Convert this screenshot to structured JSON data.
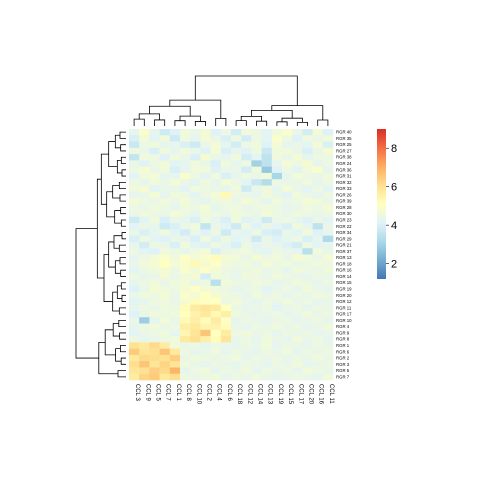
{
  "chart_data": {
    "type": "heatmap",
    "columns": [
      "CCL 3",
      "CCL 9",
      "CCL 5",
      "CCL 7",
      "CCL 1",
      "CCL 8",
      "CCL 10",
      "CCL 2",
      "CCL 4",
      "CCL 6",
      "CCL 18",
      "CCL 12",
      "CCL 14",
      "CCL 13",
      "CCL 19",
      "CCL 15",
      "CCL 17",
      "CCL 20",
      "CCL 16",
      "CCL 11"
    ],
    "rows": [
      "RGR 40",
      "RGR 35",
      "RGR 25",
      "RGR 27",
      "RGR 38",
      "RGR 24",
      "RGR 36",
      "RGR 31",
      "RGR 32",
      "RGR 33",
      "RGR 26",
      "RGR 39",
      "RGR 28",
      "RGR 30",
      "RGR 23",
      "RGR 22",
      "RGR 34",
      "RGR 29",
      "RGR 21",
      "RGR 37",
      "RGR 13",
      "RGR 18",
      "RGR 16",
      "RGR 14",
      "RGR 15",
      "RGR 19",
      "RGR 20",
      "RGR 12",
      "RGR 11",
      "RGR 17",
      "RGR 10",
      "RGR 4",
      "RGR 9",
      "RGR 8",
      "RGR 1",
      "RGR 6",
      "RGR 2",
      "RGR 3",
      "RGR 5",
      "RGR 7"
    ],
    "values": [
      [
        4.3,
        4.9,
        4.3,
        3.8,
        4.1,
        4.6,
        4.4,
        4.8,
        4.1,
        4.5,
        3.9,
        4.6,
        4.5,
        4.2,
        4.6,
        4.9,
        4.4,
        3.9,
        4.7,
        4.1
      ],
      [
        4.0,
        4.7,
        4.2,
        4.6,
        3.8,
        4.6,
        4.3,
        4.7,
        4.4,
        4.0,
        4.5,
        3.9,
        4.5,
        4.2,
        4.9,
        4.5,
        4.1,
        4.6,
        4.4,
        4.6
      ],
      [
        3.7,
        4.5,
        4.6,
        4.3,
        4.3,
        4.0,
        3.8,
        4.4,
        4.7,
        4.3,
        3.9,
        4.5,
        4.6,
        4.1,
        4.7,
        4.3,
        4.4,
        4.2,
        4.7,
        4.0
      ],
      [
        4.5,
        4.4,
        4.0,
        4.6,
        4.3,
        4.6,
        4.4,
        4.1,
        4.7,
        4.0,
        4.3,
        4.1,
        4.5,
        3.7,
        4.6,
        4.6,
        4.4,
        4.0,
        4.4,
        4.8
      ],
      [
        3.6,
        4.6,
        4.5,
        4.1,
        4.6,
        4.4,
        4.0,
        4.8,
        4.4,
        4.3,
        4.6,
        3.9,
        4.2,
        3.5,
        4.6,
        4.4,
        4.7,
        4.3,
        4.5,
        4.5
      ],
      [
        4.4,
        4.1,
        4.5,
        4.6,
        4.2,
        4.3,
        4.6,
        4.4,
        4.0,
        4.6,
        4.3,
        4.5,
        3.0,
        3.5,
        4.3,
        4.7,
        4.5,
        4.8,
        4.3,
        4.5
      ],
      [
        4.5,
        4.8,
        4.4,
        4.6,
        4.0,
        4.3,
        4.6,
        4.6,
        4.1,
        4.4,
        4.4,
        3.9,
        4.6,
        2.8,
        4.1,
        4.5,
        4.2,
        4.6,
        4.9,
        4.3
      ],
      [
        4.2,
        4.6,
        4.7,
        4.3,
        4.3,
        4.9,
        4.5,
        4.2,
        4.6,
        4.0,
        4.3,
        4.5,
        4.4,
        4.6,
        3.1,
        4.3,
        4.7,
        4.5,
        4.4,
        4.6
      ],
      [
        4.5,
        4.3,
        4.6,
        4.4,
        4.7,
        4.4,
        4.2,
        4.6,
        4.3,
        4.7,
        4.5,
        4.2,
        3.7,
        3.3,
        4.5,
        4.4,
        4.4,
        4.6,
        4.3,
        4.5
      ],
      [
        4.6,
        4.8,
        4.2,
        4.4,
        4.4,
        4.2,
        4.6,
        4.5,
        4.4,
        4.3,
        4.6,
        3.8,
        4.4,
        4.6,
        4.3,
        4.7,
        4.4,
        4.2,
        4.5,
        4.2
      ],
      [
        4.3,
        4.4,
        4.7,
        4.3,
        4.6,
        4.5,
        4.2,
        4.5,
        4.7,
        5.3,
        4.5,
        4.4,
        4.3,
        4.6,
        4.4,
        4.2,
        4.6,
        4.4,
        4.3,
        4.5
      ],
      [
        4.7,
        4.5,
        4.4,
        4.6,
        4.4,
        4.7,
        4.4,
        4.3,
        4.5,
        4.6,
        4.4,
        4.7,
        4.5,
        4.3,
        4.6,
        4.4,
        4.5,
        4.7,
        4.6,
        4.4
      ],
      [
        4.5,
        4.4,
        4.6,
        4.5,
        4.3,
        4.6,
        4.5,
        4.7,
        4.3,
        4.5,
        4.6,
        4.4,
        4.5,
        4.6,
        4.5,
        4.3,
        4.4,
        4.6,
        4.5,
        4.7
      ],
      [
        4.4,
        4.6,
        4.5,
        4.4,
        4.7,
        4.5,
        4.3,
        4.6,
        4.5,
        4.4,
        4.6,
        4.5,
        4.4,
        4.7,
        4.5,
        4.4,
        4.6,
        4.5,
        4.4,
        4.5
      ],
      [
        3.8,
        4.2,
        4.6,
        4.0,
        4.4,
        4.3,
        4.0,
        4.6,
        4.3,
        4.0,
        4.6,
        4.1,
        4.3,
        3.8,
        4.4,
        4.5,
        4.3,
        4.1,
        4.4,
        4.2
      ],
      [
        4.2,
        4.4,
        4.3,
        3.8,
        4.0,
        4.4,
        4.6,
        3.6,
        4.4,
        4.2,
        3.8,
        4.5,
        4.1,
        4.4,
        4.2,
        4.0,
        4.6,
        4.3,
        3.5,
        4.4
      ],
      [
        4.4,
        4.0,
        4.3,
        4.6,
        4.2,
        3.9,
        4.4,
        4.1,
        4.5,
        3.8,
        4.3,
        4.2,
        4.5,
        4.0,
        3.9,
        4.4,
        4.2,
        4.6,
        4.1,
        4.3
      ],
      [
        4.0,
        4.5,
        4.2,
        4.1,
        4.4,
        4.3,
        4.0,
        4.6,
        4.1,
        4.5,
        4.2,
        4.3,
        3.8,
        4.4,
        4.1,
        4.3,
        4.5,
        4.0,
        4.3,
        3.2
      ],
      [
        4.3,
        3.9,
        4.5,
        4.4,
        4.0,
        4.6,
        4.2,
        4.1,
        4.5,
        4.3,
        4.0,
        4.5,
        4.2,
        4.4,
        4.3,
        4.1,
        3.9,
        4.5,
        4.2,
        4.3
      ],
      [
        4.5,
        4.2,
        4.1,
        4.6,
        4.5,
        4.3,
        4.6,
        4.7,
        4.0,
        4.4,
        4.5,
        4.6,
        4.3,
        4.2,
        4.5,
        4.4,
        4.3,
        3.4,
        4.6,
        4.4
      ],
      [
        4.3,
        4.5,
        4.7,
        4.9,
        4.6,
        5.0,
        4.7,
        4.9,
        5.2,
        4.8,
        4.6,
        4.4,
        4.7,
        4.5,
        4.6,
        4.4,
        4.8,
        4.6,
        4.4,
        4.7
      ],
      [
        4.4,
        4.6,
        4.8,
        5.1,
        4.7,
        4.9,
        5.3,
        4.8,
        5.0,
        4.6,
        4.5,
        4.6,
        4.4,
        4.7,
        4.5,
        4.6,
        4.4,
        4.5,
        4.6,
        4.5
      ],
      [
        4.2,
        4.5,
        4.6,
        4.8,
        4.5,
        4.9,
        4.6,
        5.0,
        4.7,
        4.5,
        4.4,
        4.5,
        4.6,
        4.4,
        4.5,
        4.3,
        4.6,
        4.5,
        4.4,
        4.6
      ],
      [
        4.5,
        4.3,
        4.4,
        4.7,
        4.4,
        4.6,
        4.8,
        3.9,
        4.6,
        4.5,
        4.3,
        4.6,
        4.5,
        4.4,
        4.6,
        4.5,
        4.4,
        4.3,
        4.5,
        4.4
      ],
      [
        4.3,
        4.5,
        4.6,
        4.4,
        4.6,
        4.7,
        4.4,
        4.5,
        3.4,
        4.6,
        4.5,
        4.4,
        4.6,
        4.5,
        4.3,
        4.4,
        4.6,
        4.5,
        4.3,
        4.5
      ],
      [
        4.1,
        4.4,
        4.8,
        4.6,
        4.5,
        4.8,
        5.0,
        4.7,
        4.6,
        4.5,
        4.3,
        4.4,
        4.5,
        4.2,
        4.4,
        4.5,
        4.3,
        4.6,
        4.4,
        4.3
      ],
      [
        4.4,
        4.6,
        4.5,
        4.7,
        4.4,
        4.9,
        4.7,
        5.1,
        4.8,
        4.6,
        4.5,
        4.3,
        4.6,
        4.4,
        4.5,
        4.3,
        4.5,
        4.4,
        4.6,
        4.5
      ],
      [
        4.2,
        4.3,
        4.5,
        4.6,
        4.4,
        4.8,
        5.2,
        5.0,
        5.1,
        4.5,
        4.6,
        4.4,
        4.3,
        4.5,
        4.4,
        4.6,
        4.4,
        4.5,
        4.3,
        4.4
      ],
      [
        4.3,
        4.5,
        4.4,
        4.6,
        4.5,
        5.2,
        5.7,
        5.9,
        5.8,
        5.1,
        4.5,
        4.3,
        4.4,
        4.5,
        4.2,
        4.4,
        4.5,
        4.3,
        4.5,
        4.4
      ],
      [
        4.1,
        4.4,
        4.6,
        4.5,
        4.6,
        5.1,
        5.5,
        5.8,
        5.3,
        5.6,
        4.6,
        4.4,
        4.3,
        4.4,
        4.5,
        4.3,
        4.4,
        4.6,
        4.4,
        4.5
      ],
      [
        4.4,
        2.9,
        4.3,
        4.7,
        4.4,
        5.3,
        5.6,
        5.2,
        5.7,
        5.0,
        4.3,
        4.5,
        4.4,
        4.3,
        4.4,
        4.5,
        4.3,
        4.4,
        4.5,
        4.3
      ],
      [
        4.3,
        4.5,
        4.6,
        4.4,
        4.5,
        5.6,
        5.8,
        5.4,
        5.5,
        5.2,
        4.4,
        4.3,
        4.5,
        4.4,
        4.6,
        4.4,
        4.5,
        4.3,
        4.4,
        4.6
      ],
      [
        4.2,
        4.4,
        4.5,
        4.6,
        4.3,
        5.4,
        5.9,
        6.6,
        5.1,
        5.7,
        4.5,
        4.6,
        4.4,
        4.5,
        4.3,
        4.5,
        4.4,
        4.5,
        4.3,
        4.4
      ],
      [
        4.5,
        4.3,
        4.4,
        4.5,
        4.6,
        5.8,
        6.0,
        5.6,
        5.2,
        5.9,
        4.4,
        4.5,
        4.3,
        4.6,
        4.4,
        4.3,
        4.6,
        4.4,
        4.5,
        4.3
      ],
      [
        6.0,
        5.8,
        6.2,
        5.7,
        4.6,
        4.4,
        4.5,
        4.3,
        4.5,
        4.4,
        4.3,
        4.5,
        4.4,
        4.6,
        4.3,
        4.5,
        4.4,
        4.3,
        4.5,
        4.4
      ],
      [
        6.5,
        5.9,
        6.0,
        6.6,
        5.8,
        4.5,
        4.3,
        4.4,
        4.6,
        4.3,
        4.5,
        4.4,
        4.3,
        4.5,
        4.4,
        4.6,
        4.3,
        4.5,
        4.4,
        4.5
      ],
      [
        5.8,
        6.2,
        6.1,
        6.0,
        6.4,
        4.4,
        4.6,
        4.5,
        4.4,
        4.5,
        4.6,
        4.3,
        4.5,
        4.4,
        4.5,
        4.3,
        4.5,
        4.4,
        4.6,
        4.4
      ],
      [
        6.1,
        6.6,
        5.9,
        6.3,
        5.9,
        4.6,
        4.4,
        4.3,
        4.5,
        4.4,
        4.3,
        4.5,
        4.4,
        4.3,
        4.5,
        4.4,
        4.6,
        4.3,
        4.4,
        4.5
      ],
      [
        5.9,
        6.0,
        6.4,
        6.2,
        6.9,
        4.3,
        4.5,
        4.6,
        4.3,
        4.5,
        4.4,
        4.6,
        4.3,
        4.5,
        4.4,
        4.5,
        4.3,
        4.6,
        4.5,
        4.4
      ],
      [
        5.7,
        6.3,
        6.5,
        5.8,
        6.1,
        4.5,
        4.4,
        4.5,
        4.6,
        4.3,
        4.5,
        4.4,
        4.6,
        4.4,
        4.3,
        4.4,
        4.5,
        4.4,
        4.3,
        4.6
      ]
    ],
    "legend": {
      "ticks": [
        2,
        4,
        6,
        8
      ],
      "range": [
        1.2,
        9.0
      ],
      "colors": [
        "#4575b4",
        "#74add1",
        "#abd9e9",
        "#e0f3f8",
        "#ffffbf",
        "#fee090",
        "#fdae61",
        "#f46d43",
        "#d73027"
      ]
    },
    "grid": false,
    "legend_placement": "right"
  }
}
